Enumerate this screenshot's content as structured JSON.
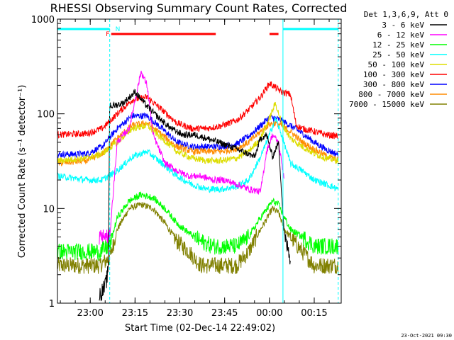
{
  "chart_data": {
    "type": "line",
    "title": "RHESSI Observing Summary Count Rates, Corrected",
    "xlabel": "Start Time (02-Dec-14 22:49:02)",
    "ylabel": "Corrected Count Rate (s⁻¹ detector⁻¹)",
    "yscale": "log",
    "ylim": [
      1,
      1000
    ],
    "xlim_minutes": [
      0,
      95
    ],
    "x_tick_minutes": [
      10.97,
      25.97,
      40.97,
      55.97,
      70.97,
      85.97
    ],
    "x_tick_labels": [
      "23:00",
      "23:15",
      "23:30",
      "23:45",
      "00:00",
      "00:15"
    ],
    "y_ticks": [
      1,
      10,
      100,
      1000
    ],
    "y_tick_labels": [
      "1",
      "10",
      "100",
      "1000"
    ],
    "legend_title": "Det 1,3,6,9, Att 0",
    "legend_position": "right",
    "timestamp": "23-Oct-2021 09:30",
    "flag_labels": {
      "night": "N",
      "flare": "F"
    },
    "annotations": {
      "night_intervals": [
        [
          0,
          17.5
        ],
        [
          75.5,
          94
        ]
      ],
      "flare_intervals": [
        [
          18,
          53
        ],
        [
          71,
          74
        ]
      ],
      "flare_label_minute": 16.2,
      "vertical_lines": [
        0,
        17.5,
        75.5,
        94
      ]
    },
    "series": [
      {
        "name": "3 - 6 keV",
        "color": "#000000",
        "t": [
          14,
          16,
          17,
          17.5,
          18,
          22,
          26,
          30,
          34,
          38,
          42,
          46,
          50,
          54,
          58,
          62,
          66,
          68,
          70,
          72,
          74,
          76,
          78
        ],
        "values": [
          1.2,
          1.5,
          2.2,
          130,
          120,
          130,
          170,
          120,
          90,
          70,
          60,
          60,
          55,
          50,
          45,
          40,
          35,
          55,
          60,
          35,
          50,
          5,
          3
        ]
      },
      {
        "name": "6 - 12 keV",
        "color": "#ff00ff",
        "t": [
          14,
          16,
          17.5,
          20,
          24,
          28,
          30,
          32,
          36,
          40,
          44,
          48,
          52,
          56,
          60,
          64,
          68,
          70,
          72,
          74,
          76
        ],
        "values": [
          5,
          5,
          5,
          50,
          70,
          280,
          200,
          60,
          30,
          25,
          22,
          22,
          20,
          20,
          18,
          16,
          15,
          40,
          60,
          50,
          20
        ]
      },
      {
        "name": "12 - 25 keV",
        "color": "#00ff00",
        "t": [
          0,
          10,
          14,
          17.5,
          20,
          24,
          28,
          32,
          36,
          40,
          44,
          48,
          52,
          56,
          60,
          64,
          68,
          72,
          74,
          76,
          78,
          82,
          86,
          90,
          94
        ],
        "values": [
          3.5,
          3.5,
          3.5,
          4,
          8,
          12,
          14,
          13,
          10,
          7,
          5.5,
          4.5,
          4,
          4,
          4,
          5,
          8,
          12,
          11,
          8,
          6,
          5,
          4,
          4,
          4
        ]
      },
      {
        "name": "25 - 50 keV",
        "color": "#00ffff",
        "t": [
          0,
          10,
          15,
          20,
          25,
          30,
          35,
          40,
          45,
          50,
          55,
          60,
          64,
          68,
          71,
          73,
          75,
          78,
          82,
          86,
          90,
          94
        ],
        "values": [
          22,
          20,
          20,
          25,
          35,
          40,
          30,
          22,
          18,
          16,
          16,
          17,
          20,
          35,
          60,
          90,
          60,
          30,
          25,
          20,
          18,
          16
        ]
      },
      {
        "name": "50 - 100 keV",
        "color": "#dddd00",
        "t": [
          0,
          10,
          15,
          20,
          25,
          30,
          35,
          40,
          45,
          50,
          55,
          60,
          64,
          68,
          71,
          73,
          75,
          78,
          82,
          86,
          90,
          94
        ],
        "values": [
          32,
          34,
          38,
          50,
          70,
          75,
          55,
          40,
          34,
          32,
          32,
          34,
          40,
          55,
          90,
          130,
          80,
          55,
          45,
          38,
          34,
          32
        ]
      },
      {
        "name": "100 - 300 keV",
        "color": "#ff0000",
        "t": [
          0,
          10,
          15,
          20,
          25,
          30,
          35,
          40,
          45,
          50,
          55,
          60,
          64,
          68,
          71,
          73,
          75,
          78,
          80,
          82,
          86,
          90,
          94
        ],
        "values": [
          60,
          62,
          70,
          100,
          140,
          150,
          110,
          80,
          70,
          70,
          75,
          85,
          110,
          150,
          210,
          190,
          170,
          160,
          75,
          70,
          65,
          60,
          58
        ]
      },
      {
        "name": "300 - 800 keV",
        "color": "#0000ff",
        "t": [
          0,
          10,
          15,
          20,
          25,
          30,
          35,
          40,
          45,
          50,
          55,
          60,
          64,
          68,
          71,
          73,
          75,
          78,
          82,
          86,
          90,
          94
        ],
        "values": [
          37,
          38,
          45,
          70,
          95,
          95,
          70,
          50,
          45,
          45,
          45,
          48,
          58,
          75,
          92,
          90,
          85,
          75,
          62,
          50,
          42,
          37
        ]
      },
      {
        "name": "800 - 7000 keV",
        "color": "#ff8c00",
        "t": [
          0,
          10,
          15,
          20,
          25,
          30,
          35,
          40,
          45,
          50,
          55,
          60,
          64,
          68,
          71,
          73,
          75,
          78,
          82,
          86,
          90,
          94
        ],
        "values": [
          30,
          32,
          38,
          55,
          75,
          80,
          60,
          45,
          40,
          40,
          40,
          43,
          50,
          65,
          78,
          80,
          75,
          65,
          50,
          42,
          36,
          32
        ]
      },
      {
        "name": "7000 - 15000 keV",
        "color": "#808000",
        "t": [
          0,
          10,
          14,
          17.5,
          20,
          24,
          28,
          32,
          36,
          40,
          44,
          48,
          52,
          56,
          60,
          64,
          68,
          72,
          74,
          76,
          78,
          82,
          86,
          90,
          94
        ],
        "values": [
          2.5,
          2.5,
          2.5,
          3,
          6,
          10,
          11,
          10,
          7,
          4.5,
          3.5,
          2.5,
          2.5,
          2.5,
          2.5,
          3.5,
          6,
          10,
          9,
          6,
          5,
          3.5,
          2.5,
          2.5,
          2.5
        ]
      }
    ]
  }
}
